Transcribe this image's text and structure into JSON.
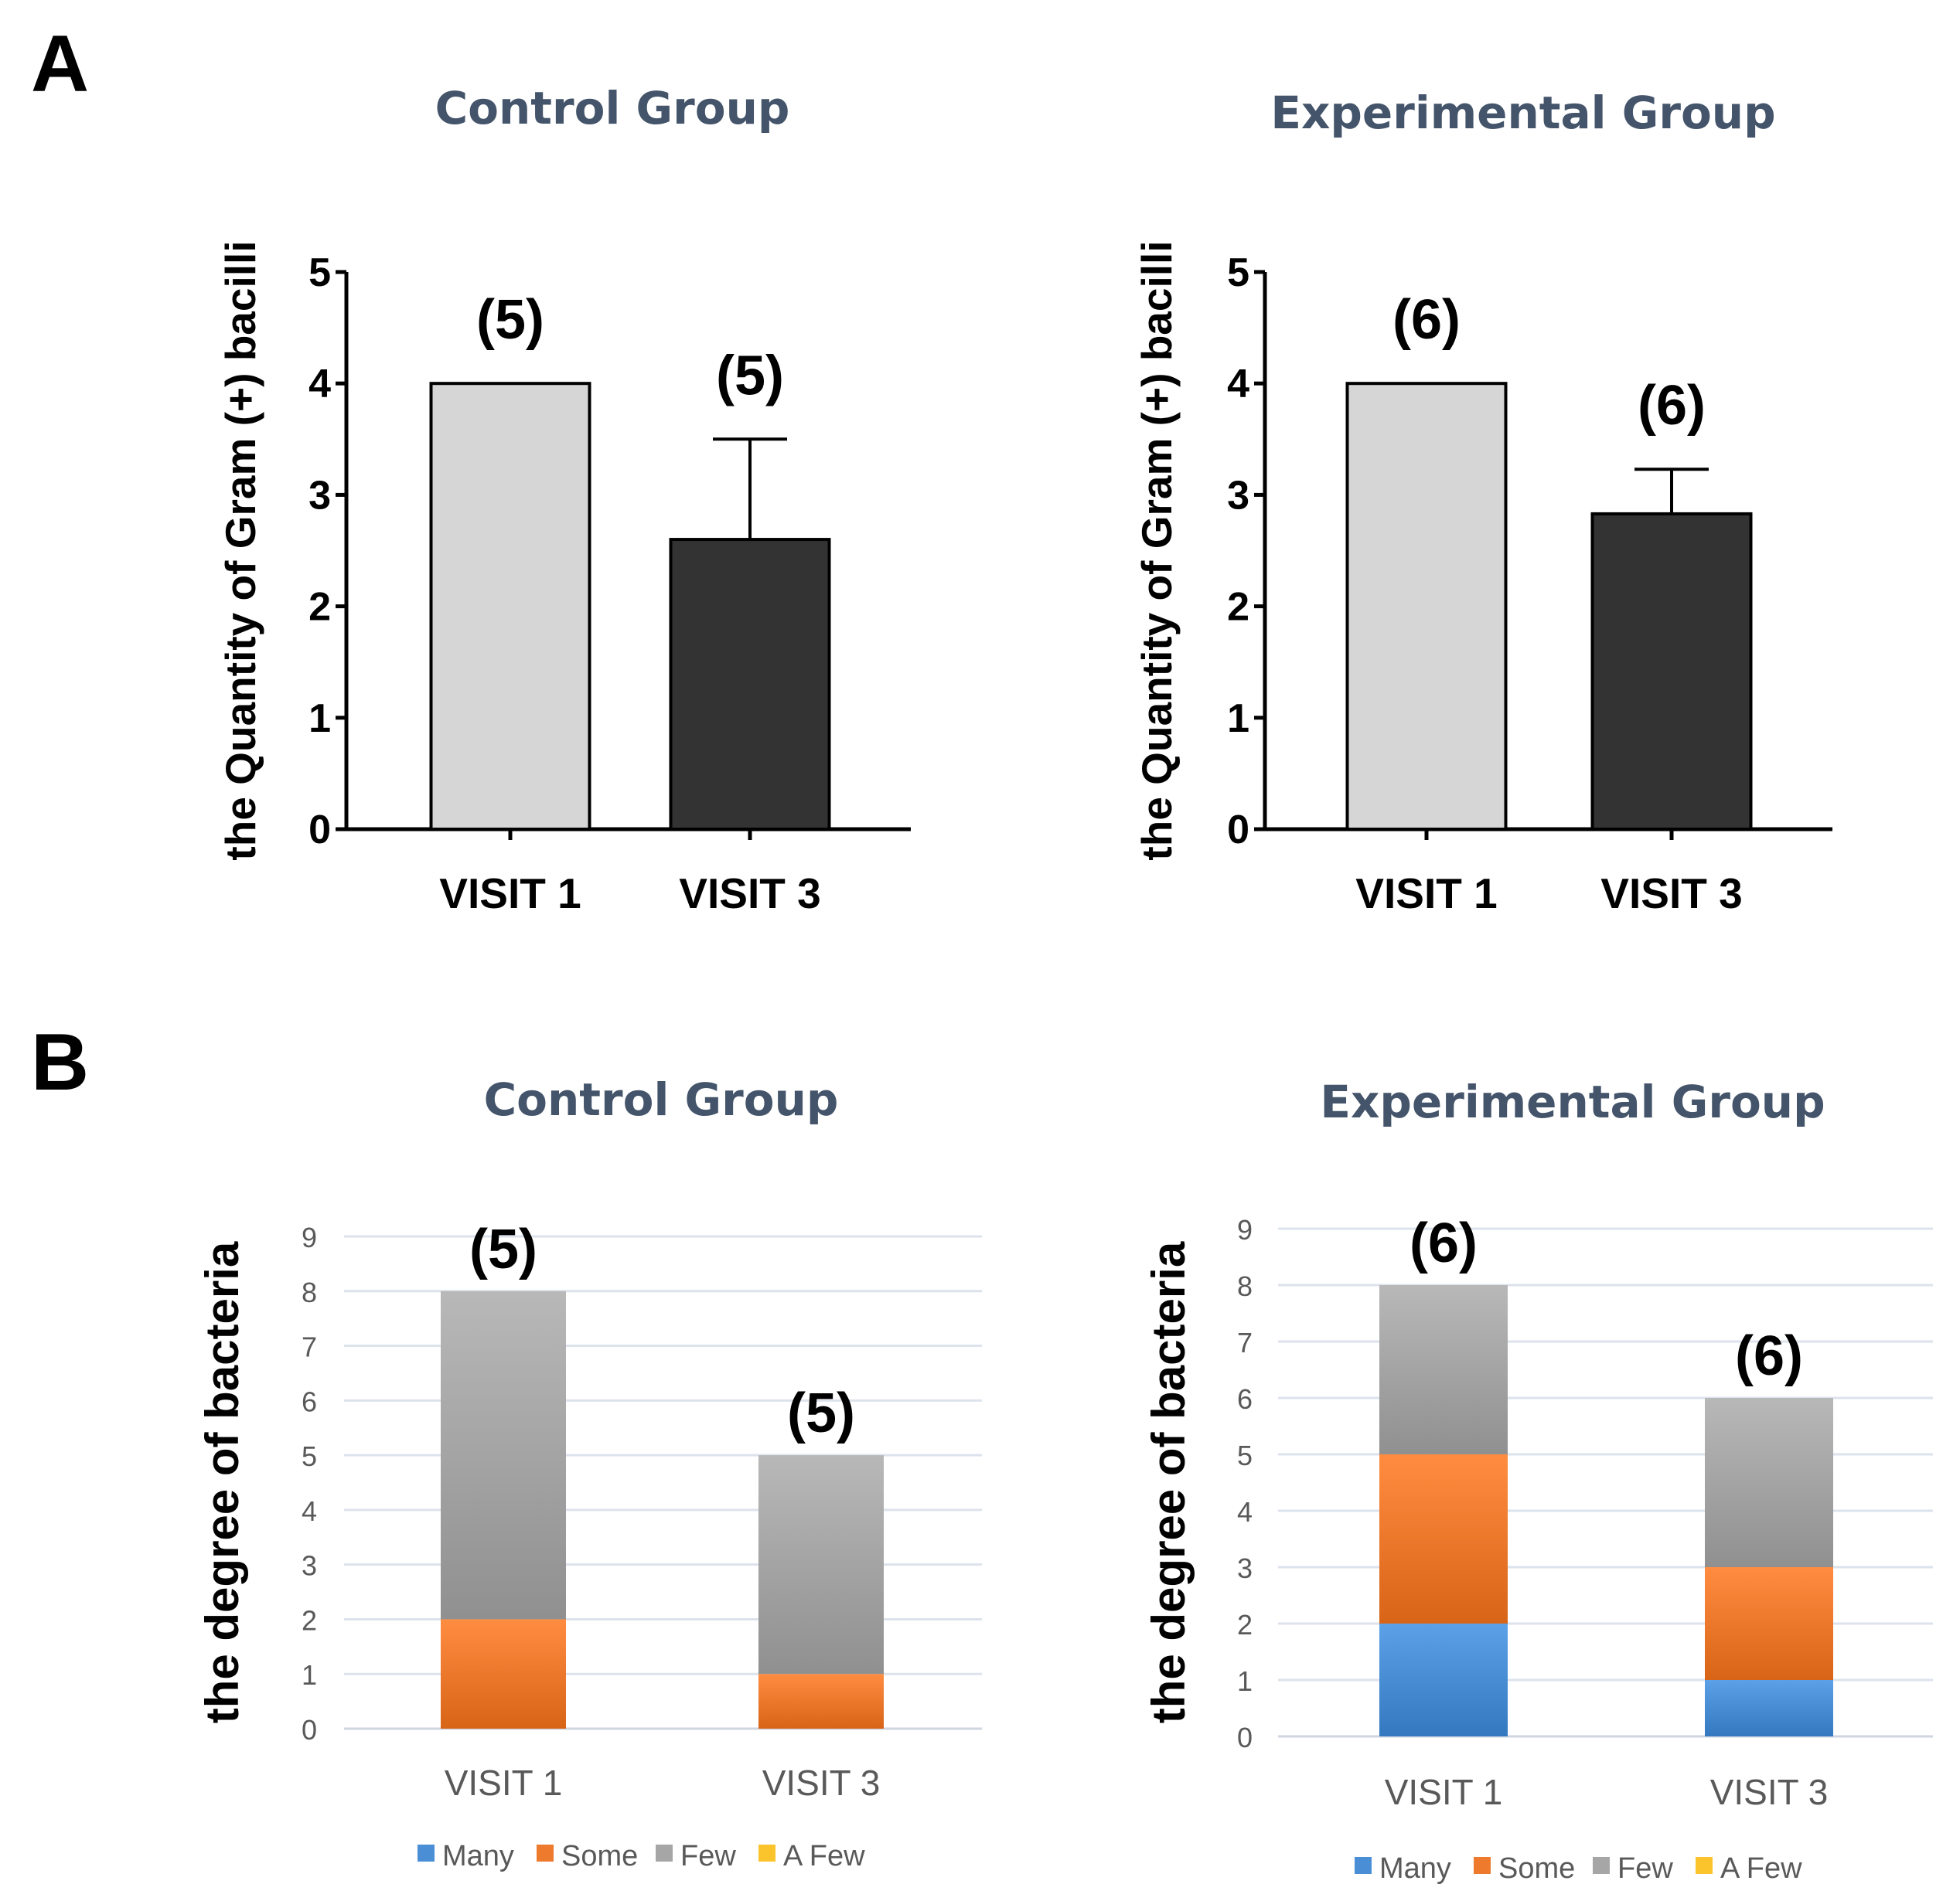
{
  "panel_letters": [
    "A",
    "B"
  ],
  "colors": {
    "visit1_bar": "#d6d6d6",
    "visit3_bar": "#333333",
    "many": "#4a8fd6",
    "some": "#ee7a2e",
    "few": "#a6a6a6",
    "a_few": "#fbc42d",
    "title": "#44546a",
    "grid": "#dde3ec"
  },
  "chart_data": [
    {
      "id": "A-control",
      "type": "bar",
      "title": "Control Group",
      "ylabel": "the Quantity of Gram (+) bacilli",
      "xlabel": "",
      "ylim": [
        0,
        5
      ],
      "yticks": [
        "0",
        "1",
        "2",
        "3",
        "4",
        "5"
      ],
      "categories": [
        "VISIT 1",
        "VISIT 3"
      ],
      "values": [
        4.0,
        2.6
      ],
      "error_upper": [
        null,
        3.5
      ],
      "n_labels": [
        "(5)",
        "(5)"
      ]
    },
    {
      "id": "A-experimental",
      "type": "bar",
      "title": "Experimental Group",
      "ylabel": "the Quantity of Gram (+) bacilli",
      "xlabel": "",
      "ylim": [
        0,
        5
      ],
      "yticks": [
        "0",
        "1",
        "2",
        "3",
        "4",
        "5"
      ],
      "categories": [
        "VISIT 1",
        "VISIT 3"
      ],
      "values": [
        4.0,
        2.83
      ],
      "error_upper": [
        null,
        3.23
      ],
      "n_labels": [
        "(6)",
        "(6)"
      ]
    },
    {
      "id": "B-control",
      "type": "bar",
      "stacked": true,
      "title": "Control Group",
      "ylabel": "the degree of bacteria",
      "xlabel": "",
      "ylim": [
        0,
        9
      ],
      "yticks": [
        "0",
        "1",
        "2",
        "3",
        "4",
        "5",
        "6",
        "7",
        "8",
        "9"
      ],
      "categories": [
        "VISIT 1",
        "VISIT 3"
      ],
      "series": [
        {
          "name": "Many",
          "values": [
            0,
            0
          ]
        },
        {
          "name": "Some",
          "values": [
            2,
            1
          ]
        },
        {
          "name": "Few",
          "values": [
            6,
            4
          ]
        },
        {
          "name": "A Few",
          "values": [
            0,
            0
          ]
        }
      ],
      "n_labels": [
        "(5)",
        "(5)"
      ],
      "legend": "bottom"
    },
    {
      "id": "B-experimental",
      "type": "bar",
      "stacked": true,
      "title": "Experimental Group",
      "ylabel": "the degree of bacteria",
      "xlabel": "",
      "ylim": [
        0,
        9
      ],
      "yticks": [
        "0",
        "1",
        "2",
        "3",
        "4",
        "5",
        "6",
        "7",
        "8",
        "9"
      ],
      "categories": [
        "VISIT 1",
        "VISIT 3"
      ],
      "series": [
        {
          "name": "Many",
          "values": [
            2,
            1
          ]
        },
        {
          "name": "Some",
          "values": [
            3,
            2
          ]
        },
        {
          "name": "Few",
          "values": [
            3,
            3
          ]
        },
        {
          "name": "A Few",
          "values": [
            0,
            0
          ]
        }
      ],
      "n_labels": [
        "(6)",
        "(6)"
      ],
      "legend": "bottom"
    }
  ]
}
